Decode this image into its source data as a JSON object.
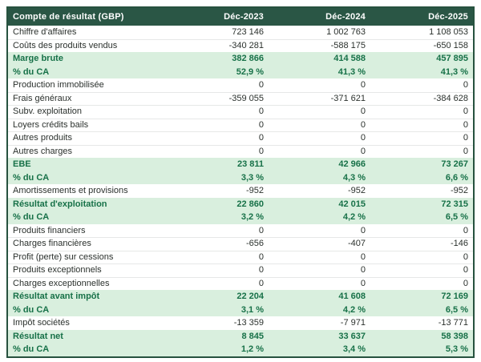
{
  "table": {
    "title": "Compte de résultat (GBP)",
    "columns": [
      "Déc-2023",
      "Déc-2024",
      "Déc-2025"
    ],
    "rows": [
      {
        "label": "Chiffre d'affaires",
        "values": [
          "723 146",
          "1 002 763",
          "1 108 053"
        ],
        "style": "normal"
      },
      {
        "label": "Coûts des produits vendus",
        "values": [
          "-340 281",
          "-588 175",
          "-650 158"
        ],
        "style": "normal"
      },
      {
        "label": "Marge brute",
        "values": [
          "382 866",
          "414 588",
          "457 895"
        ],
        "style": "highlight"
      },
      {
        "label": "% du CA",
        "values": [
          "52,9 %",
          "41,3 %",
          "41,3 %"
        ],
        "style": "highlight"
      },
      {
        "label": "Production immobilisée",
        "values": [
          "0",
          "0",
          "0"
        ],
        "style": "normal"
      },
      {
        "label": "Frais généraux",
        "values": [
          "-359 055",
          "-371 621",
          "-384 628"
        ],
        "style": "normal"
      },
      {
        "label": "Subv. exploitation",
        "values": [
          "0",
          "0",
          "0"
        ],
        "style": "normal"
      },
      {
        "label": "Loyers crédits bails",
        "values": [
          "0",
          "0",
          "0"
        ],
        "style": "normal"
      },
      {
        "label": "Autres produits",
        "values": [
          "0",
          "0",
          "0"
        ],
        "style": "normal"
      },
      {
        "label": "Autres charges",
        "values": [
          "0",
          "0",
          "0"
        ],
        "style": "normal"
      },
      {
        "label": "EBE",
        "values": [
          "23 811",
          "42 966",
          "73 267"
        ],
        "style": "highlight"
      },
      {
        "label": "% du CA",
        "values": [
          "3,3 %",
          "4,3 %",
          "6,6 %"
        ],
        "style": "highlight"
      },
      {
        "label": "Amortissements et provisions",
        "values": [
          "-952",
          "-952",
          "-952"
        ],
        "style": "normal"
      },
      {
        "label": "Résultat d'exploitation",
        "values": [
          "22 860",
          "42 015",
          "72 315"
        ],
        "style": "highlight"
      },
      {
        "label": "% du CA",
        "values": [
          "3,2 %",
          "4,2 %",
          "6,5 %"
        ],
        "style": "highlight"
      },
      {
        "label": "Produits financiers",
        "values": [
          "0",
          "0",
          "0"
        ],
        "style": "normal"
      },
      {
        "label": "Charges financières",
        "values": [
          "-656",
          "-407",
          "-146"
        ],
        "style": "normal"
      },
      {
        "label": "Profit (perte) sur cessions",
        "values": [
          "0",
          "0",
          "0"
        ],
        "style": "normal"
      },
      {
        "label": "Produits exceptionnels",
        "values": [
          "0",
          "0",
          "0"
        ],
        "style": "normal"
      },
      {
        "label": "Charges exceptionnelles",
        "values": [
          "0",
          "0",
          "0"
        ],
        "style": "normal"
      },
      {
        "label": "Résultat avant impôt",
        "values": [
          "22 204",
          "41 608",
          "72 169"
        ],
        "style": "highlight"
      },
      {
        "label": "% du CA",
        "values": [
          "3,1 %",
          "4,2 %",
          "6,5 %"
        ],
        "style": "highlight"
      },
      {
        "label": "Impôt sociétés",
        "values": [
          "-13 359",
          "-7 971",
          "-13 771"
        ],
        "style": "normal"
      },
      {
        "label": "Résultat net",
        "values": [
          "8 845",
          "33 637",
          "58 398"
        ],
        "style": "highlight"
      },
      {
        "label": "% du CA",
        "values": [
          "1,2 %",
          "3,4 %",
          "5,3 %"
        ],
        "style": "highlight"
      }
    ],
    "colors": {
      "header_bg": "#2a5645",
      "border": "#27523f",
      "highlight_bg": "#d9efde",
      "highlight_text": "#177148",
      "body_text": "#2b312d"
    }
  }
}
